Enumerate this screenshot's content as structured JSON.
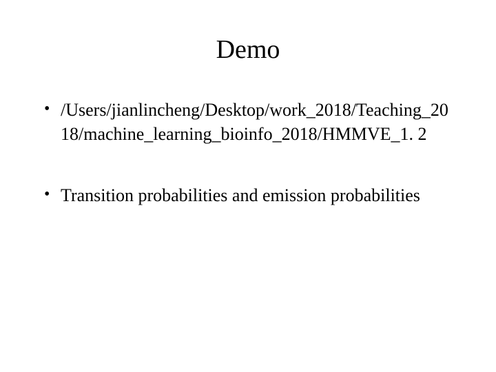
{
  "slide": {
    "title": "Demo",
    "bullets": [
      {
        "text": "/Users/jianlincheng/Desktop/work_2018/Teaching_2018/machine_learning_bioinfo_2018/HMMVE_1. 2",
        "break": "all"
      },
      {
        "text": "Transition probabilities and emission probabilities",
        "break": "normal"
      }
    ]
  },
  "style": {
    "background_color": "#ffffff",
    "text_color": "#000000",
    "title_fontsize": 38,
    "body_fontsize": 26,
    "font_family": "Times New Roman"
  }
}
